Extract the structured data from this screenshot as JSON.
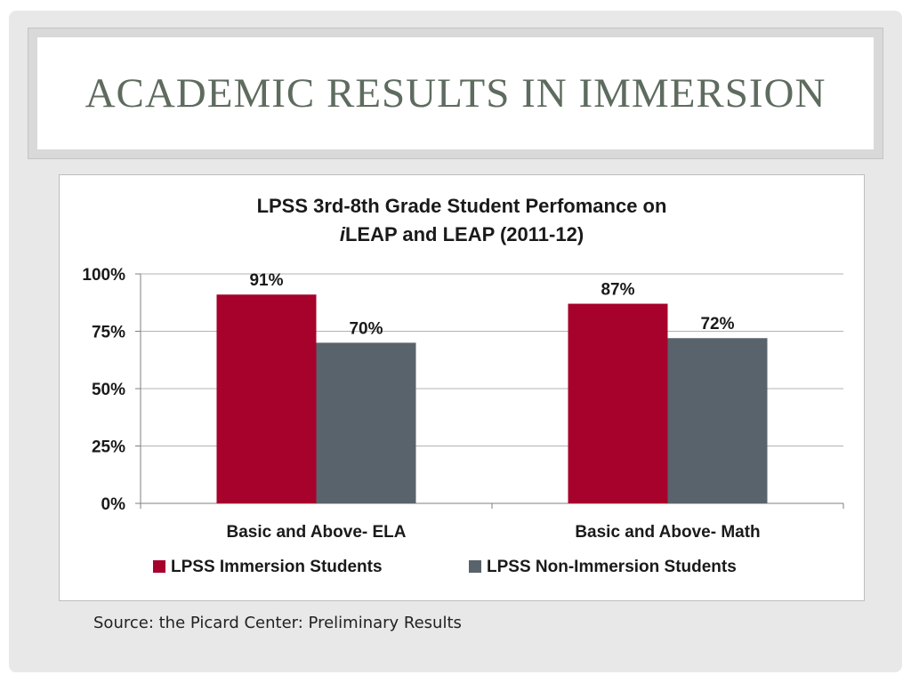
{
  "slide": {
    "title": "ACADEMIC RESULTS IN IMMERSION",
    "source": "Source: the Picard Center: Preliminary Results"
  },
  "chart_data": {
    "type": "bar",
    "title_line1": "LPSS 3rd-8th Grade Student Perfomance on",
    "title_line2_italic": "i",
    "title_line2_rest": "LEAP and LEAP (2011-12)",
    "categories": [
      "Basic and Above- ELA",
      "Basic and Above- Math"
    ],
    "series": [
      {
        "name": "LPSS Immersion Students",
        "values": [
          91,
          87
        ],
        "labels": [
          "91%",
          "87%"
        ],
        "color": "#a6022c"
      },
      {
        "name": "LPSS Non-Immersion Students",
        "values": [
          70,
          72
        ],
        "labels": [
          "70%",
          "72%"
        ],
        "color": "#59636b"
      }
    ],
    "yticks": [
      0,
      25,
      50,
      75,
      100
    ],
    "ytick_labels": [
      "0%",
      "25%",
      "50%",
      "75%",
      "100%"
    ],
    "ylim": [
      0,
      100
    ],
    "grid": true,
    "legend_position": "bottom",
    "xlabel": "",
    "ylabel": ""
  }
}
